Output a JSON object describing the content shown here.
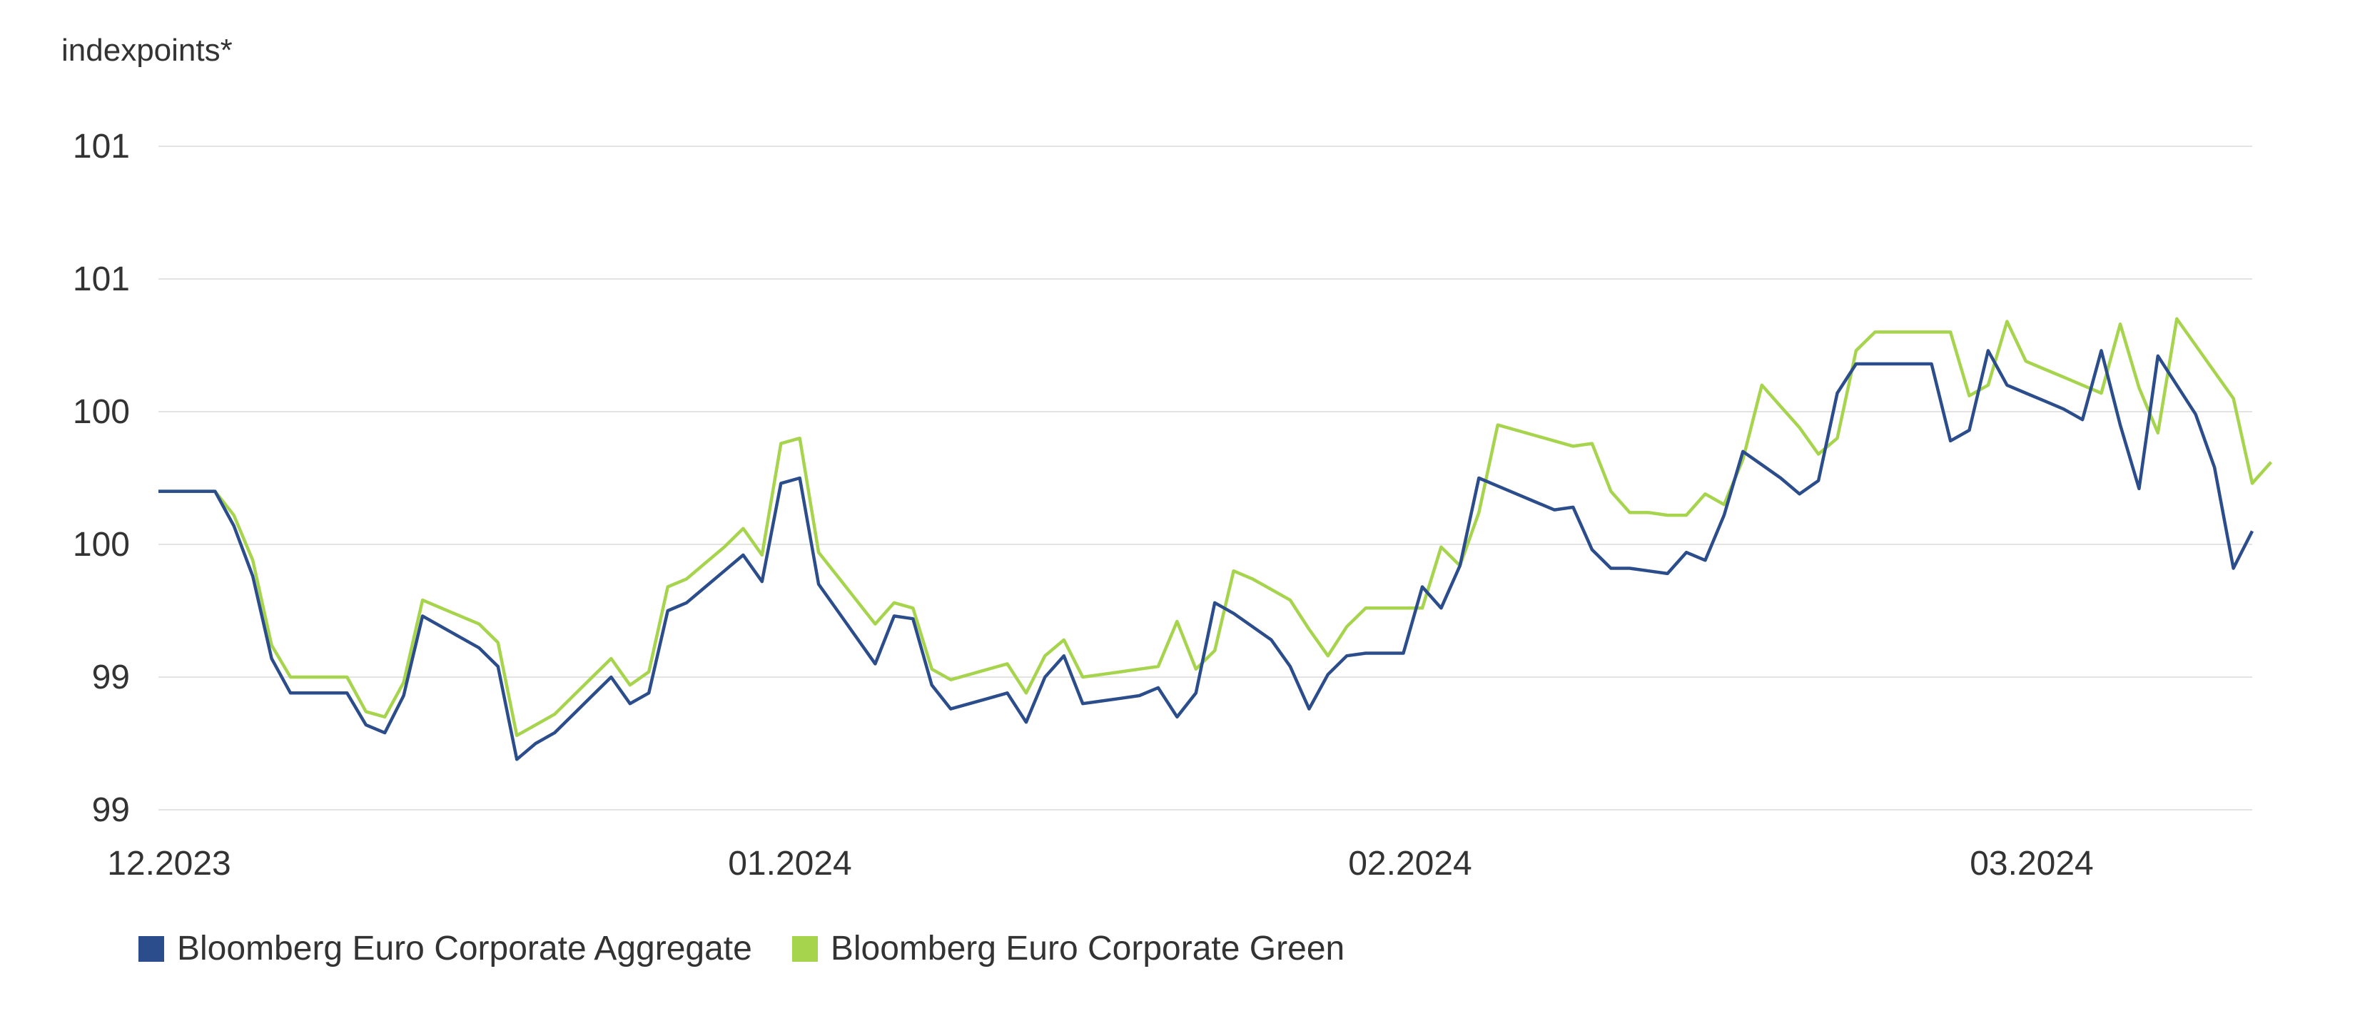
{
  "chart_data": {
    "type": "line",
    "y_unit_label": "indexpoints*",
    "y_ticks": [
      "99",
      "99",
      "100",
      "100",
      "101",
      "101"
    ],
    "ylim": [
      98.8,
      101.3
    ],
    "x_ticks": [
      "12.2023",
      "01.2024",
      "02.2024",
      "03.2024"
    ],
    "grid": true,
    "legend_position": "bottom-left",
    "series": [
      {
        "name": "Bloomberg Euro Corporate Aggregate",
        "color": "#2B4D8C",
        "values": [
          100.0,
          100.0,
          100.0,
          100.0,
          99.87,
          99.68,
          99.37,
          99.24,
          99.24,
          99.24,
          99.24,
          99.12,
          99.09,
          99.23,
          99.53,
          99.49,
          99.45,
          99.41,
          99.34,
          98.99,
          99.05,
          99.09,
          99.16,
          99.23,
          99.3,
          99.2,
          99.24,
          99.55,
          99.58,
          99.64,
          99.7,
          99.76,
          99.66,
          100.03,
          100.05,
          99.65,
          99.55,
          99.45,
          99.35,
          99.53,
          99.52,
          99.27,
          99.18,
          99.2,
          99.22,
          99.24,
          99.13,
          99.3,
          99.38,
          99.2,
          99.21,
          99.22,
          99.23,
          99.26,
          99.15,
          99.24,
          99.58,
          99.54,
          99.49,
          99.44,
          99.34,
          99.18,
          99.31,
          99.38,
          99.39,
          99.39,
          99.39,
          99.64,
          99.56,
          99.72,
          100.05,
          100.02,
          99.99,
          99.96,
          99.93,
          99.94,
          99.78,
          99.71,
          99.71,
          99.7,
          99.69,
          99.77,
          99.74,
          99.91,
          100.15,
          100.1,
          100.05,
          99.99,
          100.04,
          100.37,
          100.48,
          100.48,
          100.48,
          100.48,
          100.48,
          100.19,
          100.23,
          100.53,
          100.4,
          100.37,
          100.34,
          100.31,
          100.27,
          100.53,
          100.25,
          100.01,
          100.51,
          100.4,
          100.29,
          100.09,
          99.71,
          99.85
        ]
      },
      {
        "name": "Bloomberg Euro Corporate Green",
        "color": "#A6D44C",
        "values": [
          100.0,
          100.0,
          100.0,
          100.0,
          99.91,
          99.74,
          99.42,
          99.3,
          99.3,
          99.3,
          99.3,
          99.17,
          99.15,
          99.28,
          99.59,
          99.56,
          99.53,
          99.5,
          99.43,
          99.08,
          99.12,
          99.16,
          99.23,
          99.3,
          99.37,
          99.27,
          99.32,
          99.64,
          99.67,
          99.73,
          99.79,
          99.86,
          99.76,
          100.18,
          100.2,
          99.77,
          99.68,
          99.59,
          99.5,
          99.58,
          99.56,
          99.33,
          99.29,
          99.31,
          99.33,
          99.35,
          99.24,
          99.38,
          99.44,
          99.3,
          99.31,
          99.32,
          99.33,
          99.34,
          99.51,
          99.33,
          99.4,
          99.7,
          99.67,
          99.63,
          99.59,
          99.48,
          99.38,
          99.49,
          99.56,
          99.56,
          99.56,
          99.56,
          99.79,
          99.72,
          99.92,
          100.25,
          100.23,
          100.21,
          100.19,
          100.17,
          100.18,
          100.0,
          99.92,
          99.92,
          99.91,
          99.91,
          99.99,
          99.95,
          100.12,
          100.4,
          100.32,
          100.24,
          100.14,
          100.2,
          100.53,
          100.6,
          100.6,
          100.6,
          100.6,
          100.6,
          100.36,
          100.4,
          100.64,
          100.49,
          100.46,
          100.43,
          100.4,
          100.37,
          100.63,
          100.39,
          100.22,
          100.65,
          100.55,
          100.45,
          100.35,
          100.03,
          100.11
        ]
      }
    ]
  }
}
